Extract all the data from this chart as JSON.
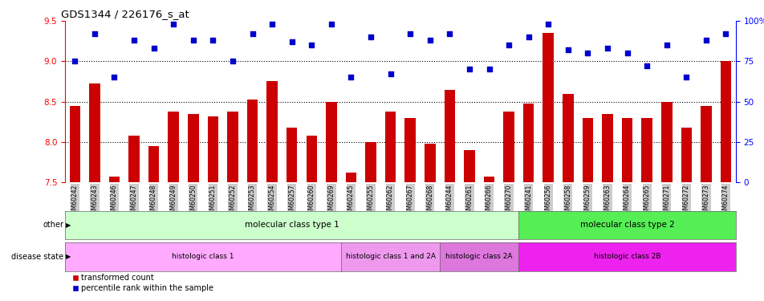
{
  "title": "GDS1344 / 226176_s_at",
  "samples": [
    "GSM60242",
    "GSM60243",
    "GSM60246",
    "GSM60247",
    "GSM60248",
    "GSM60249",
    "GSM60250",
    "GSM60251",
    "GSM60252",
    "GSM60253",
    "GSM60254",
    "GSM60257",
    "GSM60260",
    "GSM60269",
    "GSM60245",
    "GSM60255",
    "GSM60262",
    "GSM60267",
    "GSM60268",
    "GSM60244",
    "GSM60261",
    "GSM60266",
    "GSM60270",
    "GSM60241",
    "GSM60256",
    "GSM60258",
    "GSM60259",
    "GSM60263",
    "GSM60264",
    "GSM60265",
    "GSM60271",
    "GSM60272",
    "GSM60273",
    "GSM60274"
  ],
  "bar_values": [
    8.45,
    8.72,
    7.57,
    8.08,
    7.95,
    8.38,
    8.35,
    8.32,
    8.38,
    8.53,
    8.75,
    8.18,
    8.08,
    8.5,
    7.62,
    8.0,
    8.38,
    8.3,
    7.98,
    8.65,
    7.9,
    7.57,
    8.38,
    8.48,
    9.35,
    8.6,
    8.3,
    8.35,
    8.3,
    8.3,
    8.5,
    8.18,
    8.45,
    9.0
  ],
  "percentile_values": [
    75,
    92,
    65,
    88,
    83,
    98,
    88,
    88,
    75,
    92,
    98,
    87,
    85,
    98,
    65,
    90,
    67,
    92,
    88,
    92,
    70,
    70,
    85,
    90,
    98,
    82,
    80,
    83,
    80,
    72,
    85,
    65,
    88,
    92
  ],
  "ylim_left": [
    7.5,
    9.5
  ],
  "ylim_right": [
    0,
    100
  ],
  "yticks_left": [
    7.5,
    8.0,
    8.5,
    9.0,
    9.5
  ],
  "yticks_right": [
    0,
    25,
    50,
    75,
    100
  ],
  "gridlines": [
    8.0,
    8.5,
    9.0
  ],
  "bar_color": "#cc0000",
  "scatter_color": "#0000cc",
  "molecular_classes": [
    {
      "label": "molecular class type 1",
      "start": 0,
      "end": 23,
      "color": "#ccffcc"
    },
    {
      "label": "molecular class type 2",
      "start": 23,
      "end": 34,
      "color": "#55ee55"
    }
  ],
  "histologic_classes": [
    {
      "label": "histologic class 1",
      "start": 0,
      "end": 14,
      "color": "#ffaaff"
    },
    {
      "label": "histologic class 1 and 2A",
      "start": 14,
      "end": 19,
      "color": "#ee99ee"
    },
    {
      "label": "histologic class 2A",
      "start": 19,
      "end": 23,
      "color": "#dd77dd"
    },
    {
      "label": "histologic class 2B",
      "start": 23,
      "end": 34,
      "color": "#ee22ee"
    }
  ],
  "other_label": "other",
  "disease_label": "disease state",
  "legend_items": [
    {
      "label": "transformed count",
      "color": "#cc0000"
    },
    {
      "label": "percentile rank within the sample",
      "color": "#0000cc"
    }
  ]
}
